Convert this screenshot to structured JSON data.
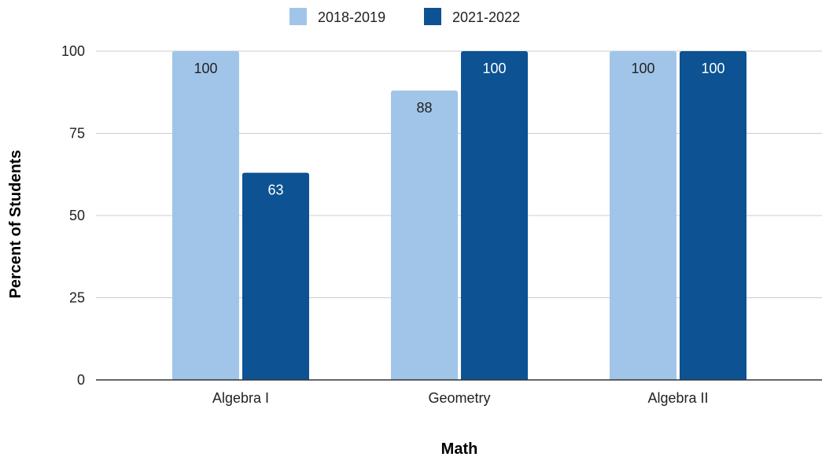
{
  "chart_data": {
    "type": "bar",
    "title": "",
    "xlabel": "Math",
    "ylabel": "Percent of Students",
    "categories": [
      "Algebra I",
      "Geometry",
      "Algebra II"
    ],
    "series": [
      {
        "name": "2018-2019",
        "color": "#a1c5e9",
        "label_color": "#222222",
        "values": [
          100,
          88,
          100
        ]
      },
      {
        "name": "2021-2022",
        "color": "#0d5293",
        "label_color": "#ffffff",
        "values": [
          63,
          100,
          100
        ]
      }
    ],
    "ylim": [
      0,
      100
    ],
    "yticks": [
      0,
      25,
      50,
      75,
      100
    ],
    "grid": true,
    "legend_position": "top-center",
    "data_labels": true,
    "colors": {
      "grid": "#cccccc",
      "axis": "#333333"
    }
  }
}
